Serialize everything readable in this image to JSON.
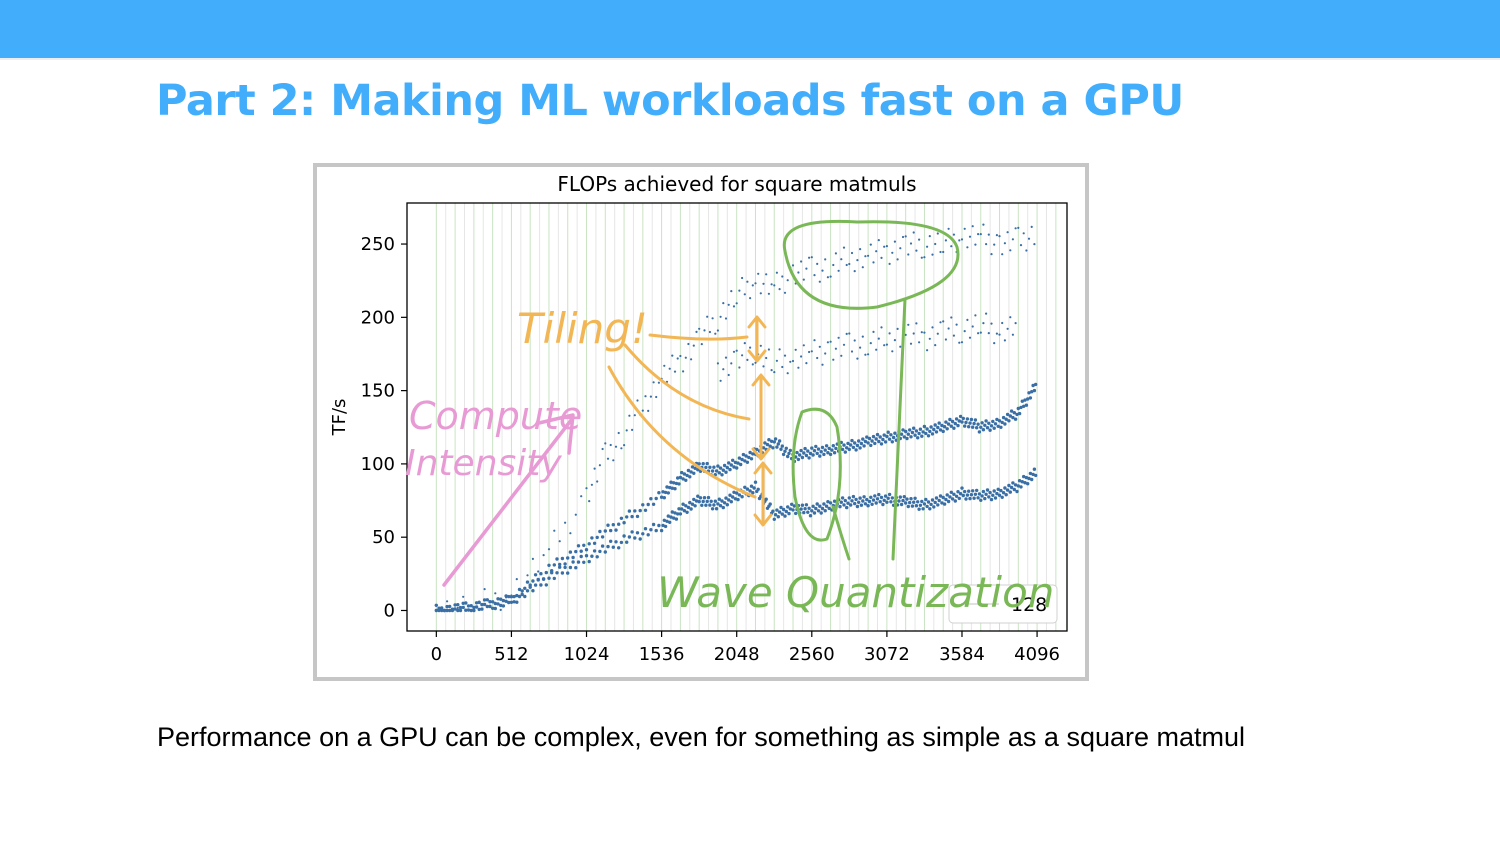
{
  "slide": {
    "title": "Part 2: Making ML workloads fast on a GPU",
    "caption": "Performance on a GPU can be complex, even for something as simple as a square matmul",
    "accent_color": "#42adfa"
  },
  "chart_data": {
    "type": "scatter",
    "title": "FLOPs achieved for square matmuls",
    "xlabel": "",
    "ylabel": "TF/s",
    "xlim": [
      -200,
      4300
    ],
    "ylim": [
      -14,
      278
    ],
    "xticks": [
      0,
      512,
      1024,
      1536,
      2048,
      2560,
      3072,
      3584,
      4096
    ],
    "xtick_labels": [
      "0",
      "512",
      "1024",
      "1536",
      "2048",
      "2560",
      "3072",
      "3584",
      "4096"
    ],
    "yticks": [
      0,
      50,
      100,
      150,
      200,
      250
    ],
    "ytick_labels": [
      "0",
      "50",
      "100",
      "150",
      "200",
      "250"
    ],
    "grid": "vertical lines at multiples of 128 (green), others grey",
    "legend": {
      "position": "bottom-right",
      "entries": [
        "128"
      ]
    },
    "series_color": "#3a6fa6",
    "series": [
      {
        "marker": "small dots",
        "points": [
          [
            0,
            0
          ],
          [
            256,
            3
          ],
          [
            512,
            12
          ],
          [
            768,
            40
          ],
          [
            1024,
            78
          ],
          [
            1152,
            105
          ],
          [
            1280,
            120
          ],
          [
            1408,
            140
          ],
          [
            1536,
            158
          ],
          [
            1664,
            170
          ],
          [
            1792,
            185
          ],
          [
            1920,
            200
          ],
          [
            2048,
            215
          ],
          [
            2176,
            225
          ],
          [
            2304,
            220
          ],
          [
            2432,
            230
          ],
          [
            2560,
            232
          ],
          [
            2688,
            235
          ],
          [
            2816,
            240
          ],
          [
            2944,
            242
          ],
          [
            3072,
            245
          ],
          [
            3200,
            248
          ],
          [
            3328,
            250
          ],
          [
            3456,
            250
          ],
          [
            3584,
            255
          ],
          [
            3712,
            255
          ],
          [
            3840,
            250
          ],
          [
            3968,
            252
          ],
          [
            4096,
            258
          ]
        ]
      },
      {
        "marker": "small dots",
        "points": [
          [
            1920,
            165
          ],
          [
            2048,
            170
          ],
          [
            2176,
            178
          ],
          [
            2304,
            168
          ],
          [
            2432,
            172
          ],
          [
            2560,
            175
          ],
          [
            2688,
            178
          ],
          [
            2816,
            180
          ],
          [
            2944,
            182
          ],
          [
            3072,
            185
          ],
          [
            3200,
            188
          ],
          [
            3328,
            186
          ],
          [
            3456,
            190
          ],
          [
            3584,
            192
          ],
          [
            3712,
            195
          ],
          [
            3840,
            190
          ],
          [
            3968,
            195
          ]
        ]
      },
      {
        "marker": "thick dots",
        "points": [
          [
            0,
            0
          ],
          [
            256,
            2
          ],
          [
            512,
            8
          ],
          [
            768,
            28
          ],
          [
            1024,
            45
          ],
          [
            1280,
            62
          ],
          [
            1536,
            78
          ],
          [
            1664,
            90
          ],
          [
            1792,
            98
          ],
          [
            1920,
            95
          ],
          [
            2048,
            100
          ],
          [
            2176,
            108
          ],
          [
            2304,
            115
          ],
          [
            2432,
            105
          ],
          [
            2560,
            108
          ],
          [
            2688,
            110
          ],
          [
            2816,
            112
          ],
          [
            2944,
            115
          ],
          [
            3072,
            118
          ],
          [
            3200,
            120
          ],
          [
            3328,
            122
          ],
          [
            3456,
            125
          ],
          [
            3584,
            130
          ],
          [
            3712,
            125
          ],
          [
            3840,
            128
          ],
          [
            3968,
            135
          ],
          [
            4096,
            155
          ]
        ]
      },
      {
        "marker": "thick dots",
        "points": [
          [
            0,
            0
          ],
          [
            256,
            2
          ],
          [
            512,
            7
          ],
          [
            768,
            22
          ],
          [
            1024,
            36
          ],
          [
            1280,
            48
          ],
          [
            1536,
            58
          ],
          [
            1664,
            68
          ],
          [
            1792,
            75
          ],
          [
            1920,
            72
          ],
          [
            2048,
            78
          ],
          [
            2176,
            84
          ],
          [
            2304,
            65
          ],
          [
            2432,
            70
          ],
          [
            2560,
            68
          ],
          [
            2688,
            72
          ],
          [
            2816,
            74
          ],
          [
            2944,
            75
          ],
          [
            3072,
            76
          ],
          [
            3200,
            74
          ],
          [
            3328,
            72
          ],
          [
            3456,
            75
          ],
          [
            3584,
            80
          ],
          [
            3712,
            78
          ],
          [
            3840,
            80
          ],
          [
            3968,
            85
          ],
          [
            4096,
            95
          ]
        ]
      }
    ],
    "annotations": [
      {
        "text": "Compute",
        "color": "#e89ad4"
      },
      {
        "text": "Intensity",
        "color": "#e89ad4"
      },
      {
        "text": "Tiling!",
        "color": "#f2b655"
      },
      {
        "text": "Wave Quantization",
        "color": "#7ab857"
      }
    ]
  }
}
